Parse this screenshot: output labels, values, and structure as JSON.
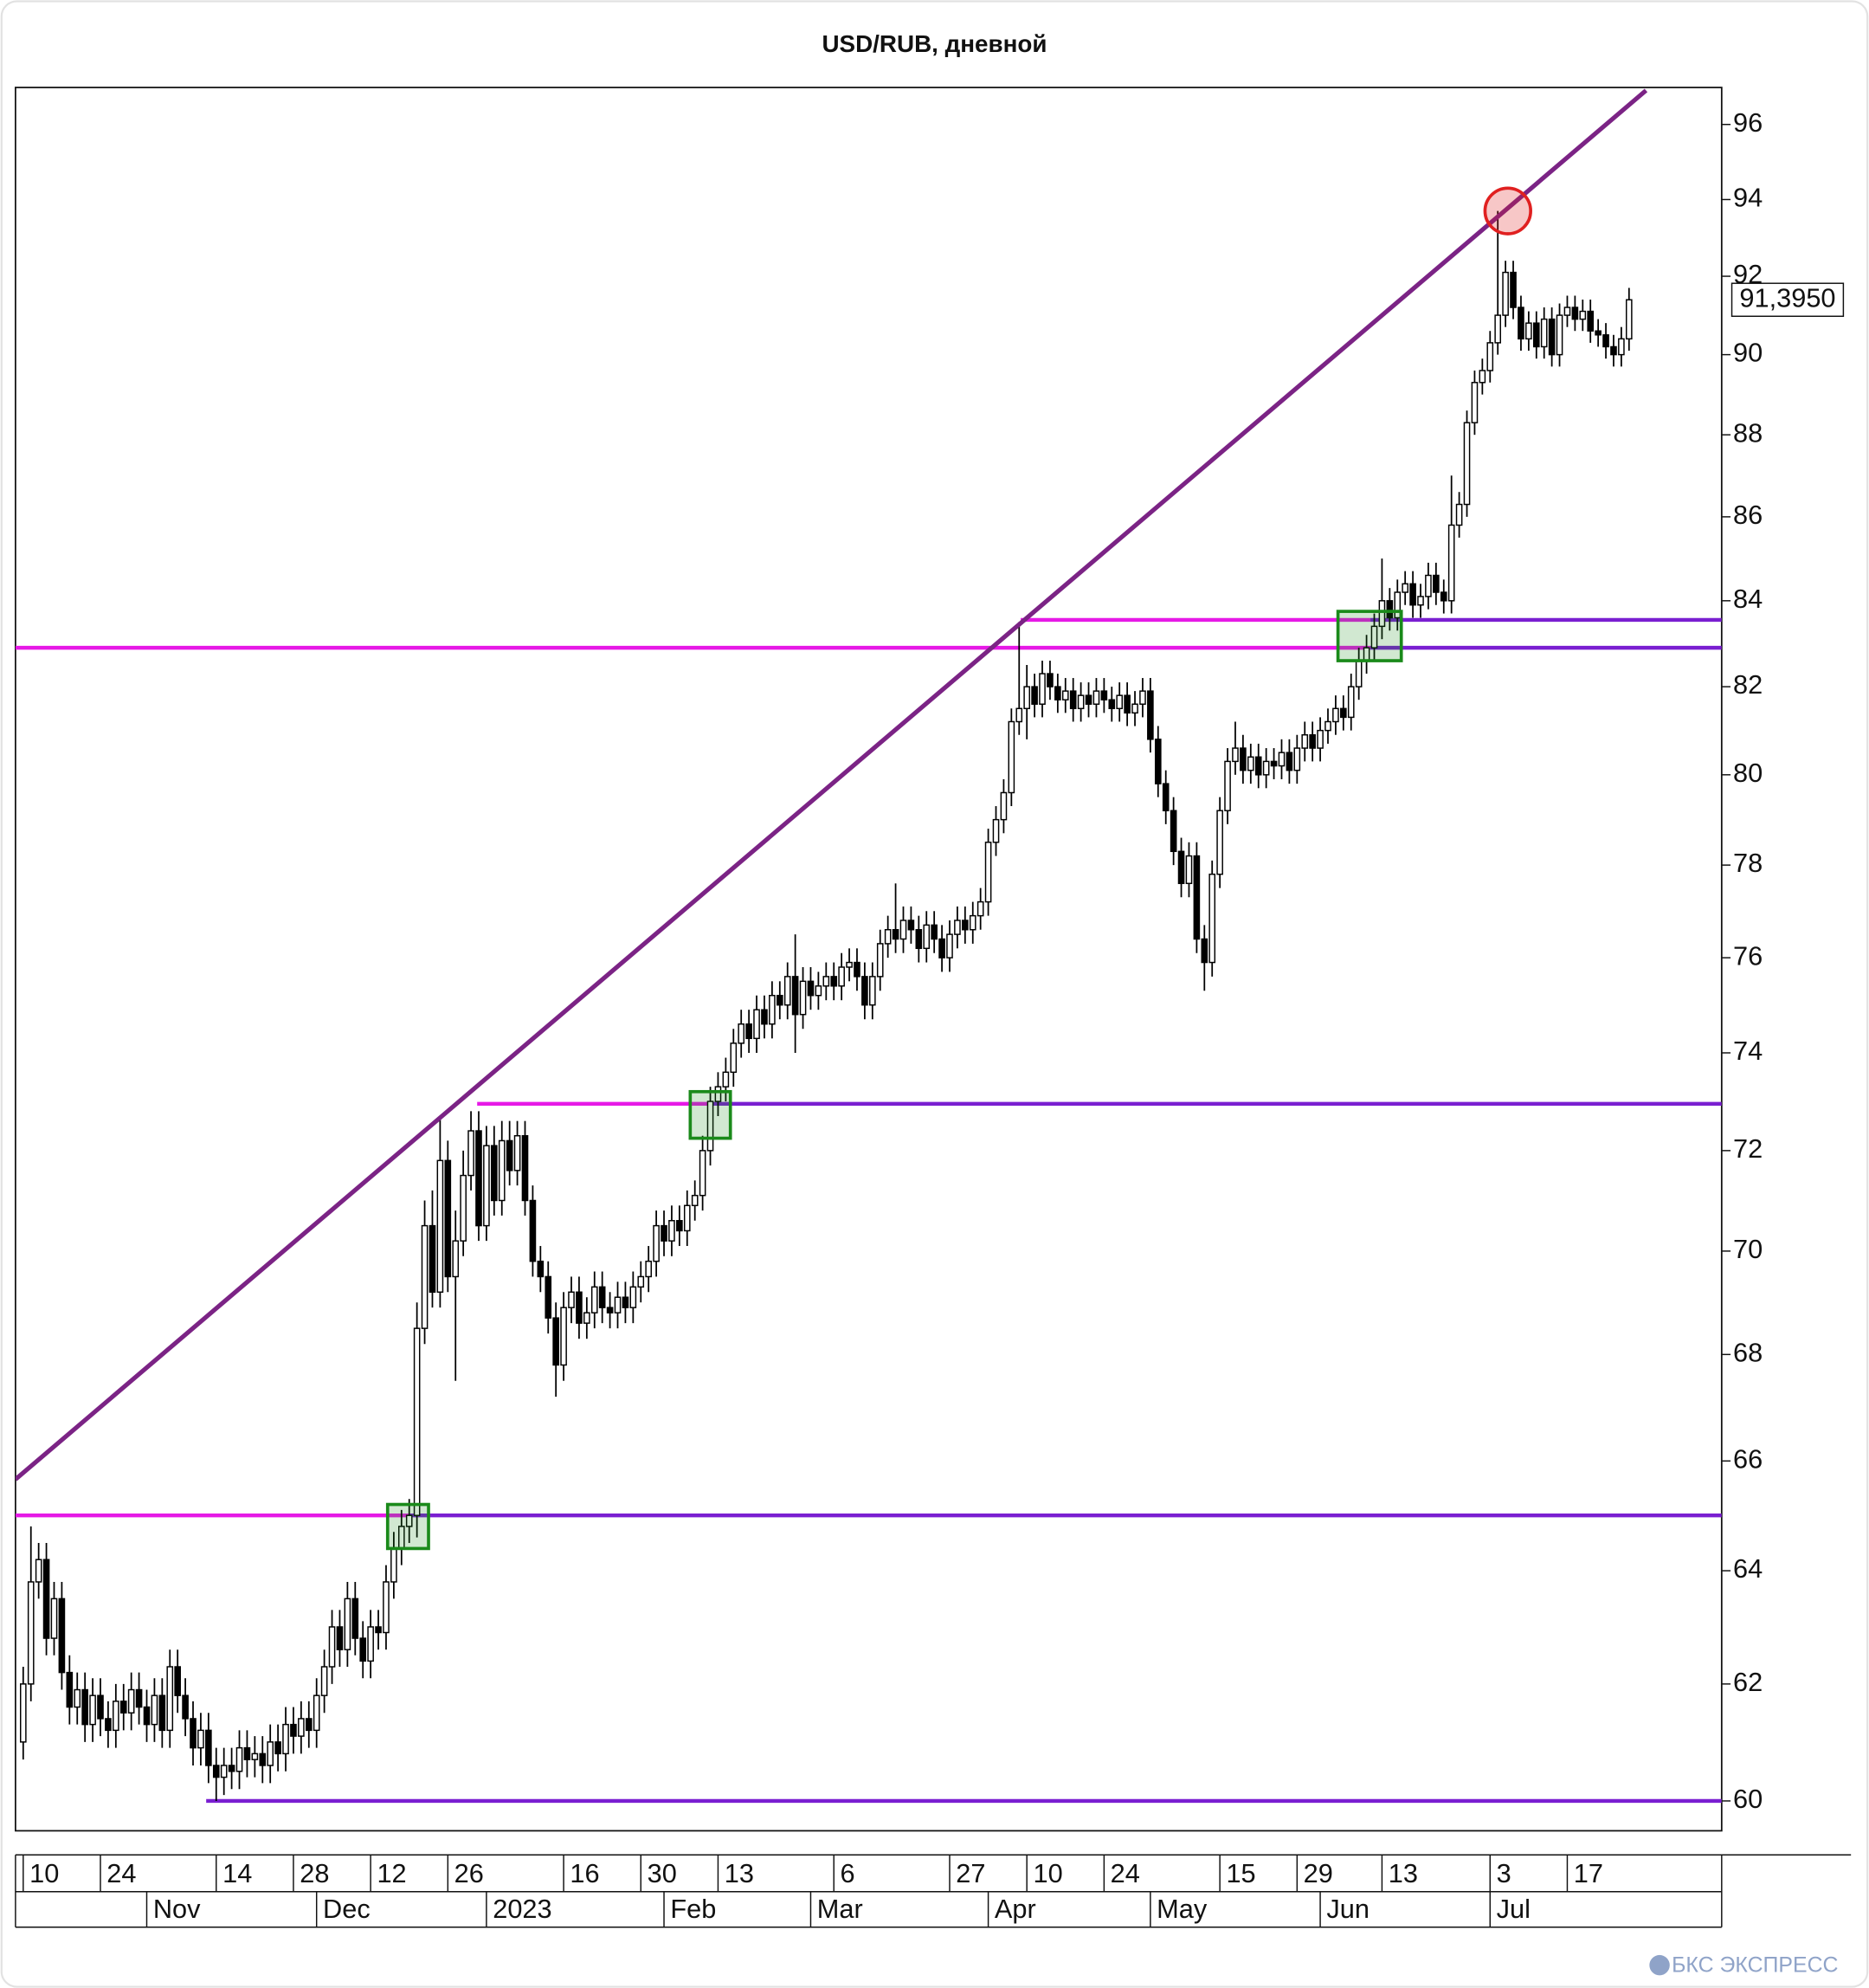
{
  "chart_data": {
    "type": "candlestick",
    "title": "USD/RUB, дневной",
    "log_scale": true,
    "grid": false,
    "xlim": [
      -1,
      220
    ],
    "ylim": [
      59.5,
      97
    ],
    "yticks": [
      60,
      62,
      64,
      66,
      68,
      70,
      72,
      74,
      76,
      78,
      80,
      82,
      84,
      86,
      88,
      90,
      92,
      94,
      96
    ],
    "xticks": [
      {
        "value": 0,
        "label": "10"
      },
      {
        "value": 10,
        "label": "24"
      },
      {
        "value": 25,
        "label": "14"
      },
      {
        "value": 35,
        "label": "28"
      },
      {
        "value": 45,
        "label": "12"
      },
      {
        "value": 55,
        "label": "26"
      },
      {
        "value": 70,
        "label": "16"
      },
      {
        "value": 80,
        "label": "30"
      },
      {
        "value": 90,
        "label": "13"
      },
      {
        "value": 105,
        "label": "6"
      },
      {
        "value": 120,
        "label": "27"
      },
      {
        "value": 130,
        "label": "10"
      },
      {
        "value": 140,
        "label": "24"
      },
      {
        "value": 155,
        "label": "15"
      },
      {
        "value": 165,
        "label": "29"
      },
      {
        "value": 176,
        "label": "13"
      },
      {
        "value": 190,
        "label": "3"
      },
      {
        "value": 200,
        "label": "17"
      }
    ],
    "month_ticks": [
      {
        "value": 16,
        "label": "Nov"
      },
      {
        "value": 38,
        "label": "Dec"
      },
      {
        "value": 60,
        "label": "2023"
      },
      {
        "value": 83,
        "label": "Feb"
      },
      {
        "value": 102,
        "label": "Mar"
      },
      {
        "value": 125,
        "label": "Apr"
      },
      {
        "value": 146,
        "label": "May"
      },
      {
        "value": 168,
        "label": "Jun"
      },
      {
        "value": 190,
        "label": "Jul"
      }
    ],
    "up_color": "#ffffff",
    "down_color": "#000000",
    "x": [
      0,
      1,
      2,
      3,
      4,
      5,
      6,
      7,
      8,
      9,
      10,
      11,
      12,
      13,
      14,
      15,
      16,
      17,
      18,
      19,
      20,
      21,
      22,
      23,
      24,
      25,
      26,
      27,
      28,
      29,
      30,
      31,
      32,
      33,
      34,
      35,
      36,
      37,
      38,
      39,
      40,
      41,
      42,
      43,
      44,
      45,
      46,
      47,
      48,
      49,
      50,
      51,
      52,
      53,
      54,
      55,
      56,
      57,
      58,
      59,
      60,
      61,
      62,
      63,
      64,
      65,
      66,
      67,
      68,
      69,
      70,
      71,
      72,
      73,
      74,
      75,
      76,
      77,
      78,
      79,
      80,
      81,
      82,
      83,
      84,
      85,
      86,
      87,
      88,
      89,
      90,
      91,
      92,
      93,
      94,
      95,
      96,
      97,
      98,
      99,
      100,
      101,
      102,
      103,
      104,
      105,
      106,
      107,
      108,
      109,
      110,
      111,
      112,
      113,
      114,
      115,
      116,
      117,
      118,
      119,
      120,
      121,
      122,
      123,
      124,
      125,
      126,
      127,
      128,
      129,
      130,
      131,
      132,
      133,
      134,
      135,
      136,
      137,
      138,
      139,
      140,
      141,
      142,
      143,
      144,
      145,
      146,
      147,
      148,
      149,
      150,
      151,
      152,
      153,
      154,
      155,
      156,
      157,
      158,
      159,
      160,
      161,
      162,
      163,
      164,
      165,
      166,
      167,
      168,
      169,
      170,
      171,
      172,
      173,
      174,
      175,
      176,
      177,
      178,
      179,
      180,
      181,
      182,
      183,
      184,
      185,
      186,
      187,
      188,
      189,
      190,
      191,
      192,
      193,
      194,
      195,
      196,
      197,
      198,
      199,
      200,
      201,
      202,
      203,
      204,
      205,
      206,
      207,
      208
    ],
    "open": [
      61.0,
      62.0,
      63.8,
      64.2,
      62.8,
      63.5,
      62.2,
      61.6,
      61.9,
      61.3,
      61.8,
      61.4,
      61.2,
      61.7,
      61.5,
      61.9,
      61.6,
      61.3,
      61.8,
      61.2,
      62.3,
      61.8,
      61.4,
      60.9,
      61.2,
      60.6,
      60.4,
      60.6,
      60.5,
      60.9,
      60.7,
      60.8,
      60.6,
      61.0,
      60.8,
      61.3,
      61.1,
      61.4,
      61.2,
      61.8,
      62.3,
      63.0,
      62.6,
      63.5,
      62.8,
      62.4,
      63.0,
      62.9,
      63.8,
      64.4,
      64.8,
      65.0,
      68.5,
      70.5,
      69.2,
      71.8,
      69.5,
      70.2,
      71.5,
      72.4,
      70.5,
      72.1,
      71.0,
      72.2,
      71.6,
      72.3,
      71.0,
      69.8,
      69.5,
      68.7,
      67.8,
      68.9,
      69.2,
      68.6,
      68.8,
      69.3,
      68.9,
      68.8,
      69.1,
      68.9,
      69.3,
      69.5,
      69.8,
      70.5,
      70.2,
      70.6,
      70.4,
      70.9,
      71.1,
      72.0,
      73.0,
      73.3,
      73.6,
      74.2,
      74.6,
      74.3,
      74.9,
      74.6,
      75.2,
      75.0,
      75.6,
      74.8,
      75.5,
      75.2,
      75.4,
      75.6,
      75.4,
      75.8,
      75.9,
      75.6,
      75.0,
      75.6,
      76.3,
      76.6,
      76.4,
      76.8,
      76.6,
      76.2,
      76.7,
      76.4,
      76.0,
      76.5,
      76.8,
      76.6,
      76.9,
      77.2,
      78.5,
      79.0,
      79.6,
      81.2,
      81.5,
      82.0,
      81.6,
      82.3,
      82.0,
      81.7,
      81.9,
      81.5,
      81.8,
      81.6,
      81.9,
      81.7,
      81.5,
      81.8,
      81.4,
      81.6,
      81.9,
      80.8,
      79.8,
      79.2,
      78.3,
      77.6,
      78.2,
      76.4,
      75.9,
      77.8,
      79.2,
      80.3,
      80.6,
      80.1,
      80.4,
      80.0,
      80.3,
      80.2,
      80.5,
      80.1,
      80.6,
      80.9,
      80.6,
      81.0,
      81.2,
      81.5,
      81.3,
      82.0,
      82.6,
      82.9,
      83.4,
      84.0,
      83.6,
      84.2,
      84.4,
      83.9,
      84.1,
      84.6,
      84.2,
      84.0,
      85.8,
      86.3,
      88.3,
      89.3,
      89.6,
      90.3,
      91.0,
      92.1,
      91.2,
      90.4,
      90.8,
      90.2,
      90.9,
      90.0,
      91.0,
      91.2,
      90.9,
      91.1,
      90.6,
      90.5,
      90.2,
      90.0,
      90.4
    ],
    "high": [
      62.3,
      64.8,
      64.5,
      64.5,
      63.8,
      63.8,
      62.5,
      62.2,
      62.2,
      62.1,
      62.1,
      61.7,
      62.0,
      62.0,
      62.2,
      62.2,
      61.9,
      62.1,
      62.1,
      62.6,
      62.6,
      62.1,
      61.7,
      61.5,
      61.5,
      60.9,
      60.9,
      60.9,
      61.2,
      61.2,
      61.1,
      61.1,
      61.3,
      61.3,
      61.6,
      61.6,
      61.7,
      61.7,
      62.1,
      62.6,
      63.3,
      63.3,
      63.8,
      63.8,
      63.1,
      63.3,
      63.3,
      64.1,
      64.7,
      65.1,
      65.3,
      69.0,
      71.0,
      71.2,
      72.7,
      72.2,
      70.8,
      72.0,
      72.8,
      72.8,
      72.5,
      72.5,
      72.6,
      72.6,
      72.6,
      72.6,
      71.3,
      70.1,
      69.8,
      69.0,
      69.2,
      69.5,
      69.5,
      69.1,
      69.6,
      69.6,
      69.2,
      69.4,
      69.4,
      69.6,
      69.8,
      70.1,
      70.8,
      70.8,
      70.9,
      70.9,
      71.2,
      71.4,
      72.3,
      73.3,
      73.6,
      73.9,
      74.5,
      74.9,
      74.9,
      75.2,
      75.2,
      75.5,
      75.5,
      75.9,
      76.5,
      75.8,
      75.8,
      75.7,
      75.9,
      75.9,
      76.1,
      76.2,
      76.2,
      75.9,
      75.9,
      76.6,
      76.9,
      77.6,
      77.1,
      77.1,
      76.9,
      77.0,
      77.0,
      76.7,
      76.8,
      77.1,
      77.1,
      77.2,
      77.5,
      78.8,
      79.3,
      79.9,
      81.5,
      83.5,
      82.5,
      82.3,
      82.6,
      82.6,
      82.3,
      82.2,
      82.2,
      82.1,
      82.1,
      82.2,
      82.2,
      82.0,
      82.1,
      82.1,
      81.9,
      82.2,
      82.2,
      81.1,
      80.1,
      79.5,
      78.6,
      78.5,
      78.5,
      76.7,
      78.1,
      79.5,
      80.6,
      81.2,
      80.9,
      80.7,
      80.7,
      80.6,
      80.6,
      80.8,
      80.8,
      80.9,
      81.2,
      81.2,
      81.3,
      81.5,
      81.8,
      81.8,
      82.3,
      82.9,
      83.2,
      83.7,
      85.0,
      84.3,
      84.5,
      84.7,
      84.7,
      84.4,
      84.9,
      84.9,
      84.5,
      87.0,
      86.6,
      88.6,
      89.6,
      89.9,
      90.6,
      93.7,
      92.4,
      92.4,
      91.5,
      91.1,
      91.1,
      91.2,
      91.2,
      91.3,
      91.5,
      91.5,
      91.4,
      91.4,
      90.9,
      90.8,
      90.5,
      90.7,
      91.7
    ],
    "low": [
      60.7,
      61.7,
      63.5,
      62.5,
      62.5,
      61.9,
      61.3,
      61.3,
      61.0,
      61.0,
      61.1,
      60.9,
      60.9,
      61.2,
      61.2,
      61.3,
      61.0,
      61.0,
      60.9,
      60.9,
      61.5,
      61.1,
      60.6,
      60.6,
      60.3,
      60.0,
      60.1,
      60.2,
      60.2,
      60.4,
      60.4,
      60.3,
      60.3,
      60.5,
      60.5,
      60.8,
      60.8,
      60.9,
      60.9,
      61.5,
      62.0,
      62.3,
      62.3,
      62.5,
      62.1,
      62.1,
      62.6,
      62.6,
      63.5,
      64.1,
      64.5,
      64.6,
      68.2,
      68.9,
      68.9,
      69.2,
      67.5,
      69.9,
      71.2,
      70.2,
      70.2,
      70.7,
      70.7,
      71.3,
      71.3,
      70.7,
      69.5,
      69.2,
      68.4,
      67.2,
      67.5,
      68.6,
      68.3,
      68.3,
      68.5,
      68.6,
      68.5,
      68.5,
      68.6,
      68.6,
      69.0,
      69.2,
      69.5,
      69.9,
      69.9,
      70.1,
      70.1,
      70.6,
      70.8,
      71.7,
      72.7,
      73.0,
      73.3,
      73.9,
      74.0,
      74.0,
      74.3,
      74.3,
      74.7,
      74.7,
      74.0,
      74.5,
      74.9,
      74.9,
      75.1,
      75.1,
      75.1,
      75.5,
      75.3,
      74.7,
      74.7,
      75.3,
      76.0,
      76.1,
      76.1,
      76.3,
      75.9,
      75.9,
      76.1,
      75.7,
      75.7,
      76.2,
      76.3,
      76.3,
      76.6,
      76.9,
      78.2,
      78.7,
      79.3,
      80.9,
      80.8,
      81.3,
      81.3,
      81.7,
      81.4,
      81.4,
      81.2,
      81.2,
      81.3,
      81.3,
      81.4,
      81.2,
      81.2,
      81.1,
      81.1,
      81.3,
      80.5,
      79.5,
      78.9,
      78.0,
      77.3,
      77.3,
      76.1,
      75.3,
      75.6,
      77.5,
      78.9,
      80.0,
      79.8,
      79.8,
      79.7,
      79.7,
      79.9,
      79.9,
      79.8,
      79.8,
      80.3,
      80.3,
      80.3,
      80.7,
      80.9,
      81.0,
      81.0,
      81.7,
      82.3,
      82.6,
      83.1,
      83.3,
      83.3,
      83.9,
      83.6,
      83.6,
      83.8,
      83.9,
      83.7,
      83.7,
      85.5,
      86.0,
      88.0,
      89.0,
      89.3,
      90.0,
      90.7,
      90.9,
      90.1,
      90.1,
      89.9,
      89.9,
      89.7,
      89.7,
      90.7,
      90.6,
      90.6,
      90.3,
      90.2,
      89.9,
      89.7,
      89.7,
      90.1
    ],
    "close": [
      62.0,
      63.8,
      64.2,
      62.8,
      63.5,
      62.2,
      61.6,
      61.9,
      61.3,
      61.8,
      61.4,
      61.2,
      61.7,
      61.5,
      61.9,
      61.6,
      61.3,
      61.8,
      61.2,
      62.3,
      61.8,
      61.4,
      60.9,
      61.2,
      60.6,
      60.4,
      60.6,
      60.5,
      60.9,
      60.7,
      60.8,
      60.6,
      61.0,
      60.8,
      61.3,
      61.1,
      61.4,
      61.2,
      61.8,
      62.3,
      63.0,
      62.6,
      63.5,
      62.8,
      62.4,
      63.0,
      62.9,
      63.8,
      64.4,
      64.8,
      65.0,
      68.5,
      70.5,
      69.2,
      71.8,
      69.5,
      70.2,
      71.5,
      72.4,
      70.5,
      72.1,
      71.0,
      72.2,
      71.6,
      72.3,
      71.0,
      69.8,
      69.5,
      68.7,
      67.8,
      68.9,
      69.2,
      68.6,
      68.8,
      69.3,
      68.9,
      68.8,
      69.1,
      68.9,
      69.3,
      69.5,
      69.8,
      70.5,
      70.2,
      70.6,
      70.4,
      70.9,
      71.1,
      72.0,
      73.0,
      73.3,
      73.6,
      74.2,
      74.6,
      74.3,
      74.9,
      74.6,
      75.2,
      75.0,
      75.6,
      74.8,
      75.5,
      75.2,
      75.4,
      75.6,
      75.4,
      75.8,
      75.9,
      75.6,
      75.0,
      75.6,
      76.3,
      76.6,
      76.4,
      76.8,
      76.6,
      76.2,
      76.7,
      76.4,
      76.0,
      76.5,
      76.8,
      76.6,
      76.9,
      77.2,
      78.5,
      79.0,
      79.6,
      81.2,
      81.5,
      82.0,
      81.6,
      82.3,
      82.0,
      81.7,
      81.9,
      81.5,
      81.8,
      81.6,
      81.9,
      81.7,
      81.5,
      81.8,
      81.4,
      81.6,
      81.9,
      80.8,
      79.8,
      79.2,
      78.3,
      77.6,
      78.2,
      76.4,
      75.9,
      77.8,
      79.2,
      80.3,
      80.6,
      80.1,
      80.4,
      80.0,
      80.3,
      80.2,
      80.5,
      80.1,
      80.6,
      80.9,
      80.6,
      81.0,
      81.2,
      81.5,
      81.3,
      82.0,
      82.6,
      82.9,
      83.4,
      84.0,
      83.6,
      84.2,
      84.4,
      83.9,
      84.1,
      84.6,
      84.2,
      84.0,
      85.8,
      86.3,
      88.3,
      89.3,
      89.6,
      90.3,
      91.0,
      92.1,
      91.2,
      90.4,
      90.8,
      90.2,
      90.9,
      90.0,
      91.0,
      91.2,
      90.9,
      91.1,
      90.6,
      90.5,
      90.2,
      90.0,
      90.4,
      91.395
    ],
    "trend_color": "#7b2385",
    "trendline": {
      "x": [
        -1,
        210.2
      ],
      "y": [
        65.66,
        96.92
      ]
    },
    "level_colors": {
      "before": "#e619e6",
      "after": "#7a1fd1"
    },
    "levels": [
      {
        "value": 65,
        "start": -1,
        "switch": 50
      },
      {
        "value": 72.95,
        "start": 58.8,
        "switch": 89
      },
      {
        "value": 82.9,
        "start": -1,
        "switch": 174.5
      },
      {
        "value": 83.55,
        "start": 129.2,
        "switch": 174.5
      },
      {
        "value": 60,
        "start": 23.7,
        "switch": 23.7
      }
    ],
    "box_color": "#1a8a1a",
    "signal_boxes": [
      {
        "x": [
          47.2,
          52.5
        ],
        "y": [
          64.4,
          65.2
        ]
      },
      {
        "x": [
          86.4,
          91.6
        ],
        "y": [
          72.25,
          73.2
        ]
      },
      {
        "x": [
          170.3,
          178.5
        ],
        "y": [
          82.6,
          83.75
        ]
      }
    ],
    "highlight": {
      "x": 192.3,
      "y": 93.7,
      "color": "#e02020"
    },
    "last_price": {
      "value": 91.395,
      "label": "91,3950"
    },
    "watermark": "БКС ЭКСПРЕСС"
  }
}
